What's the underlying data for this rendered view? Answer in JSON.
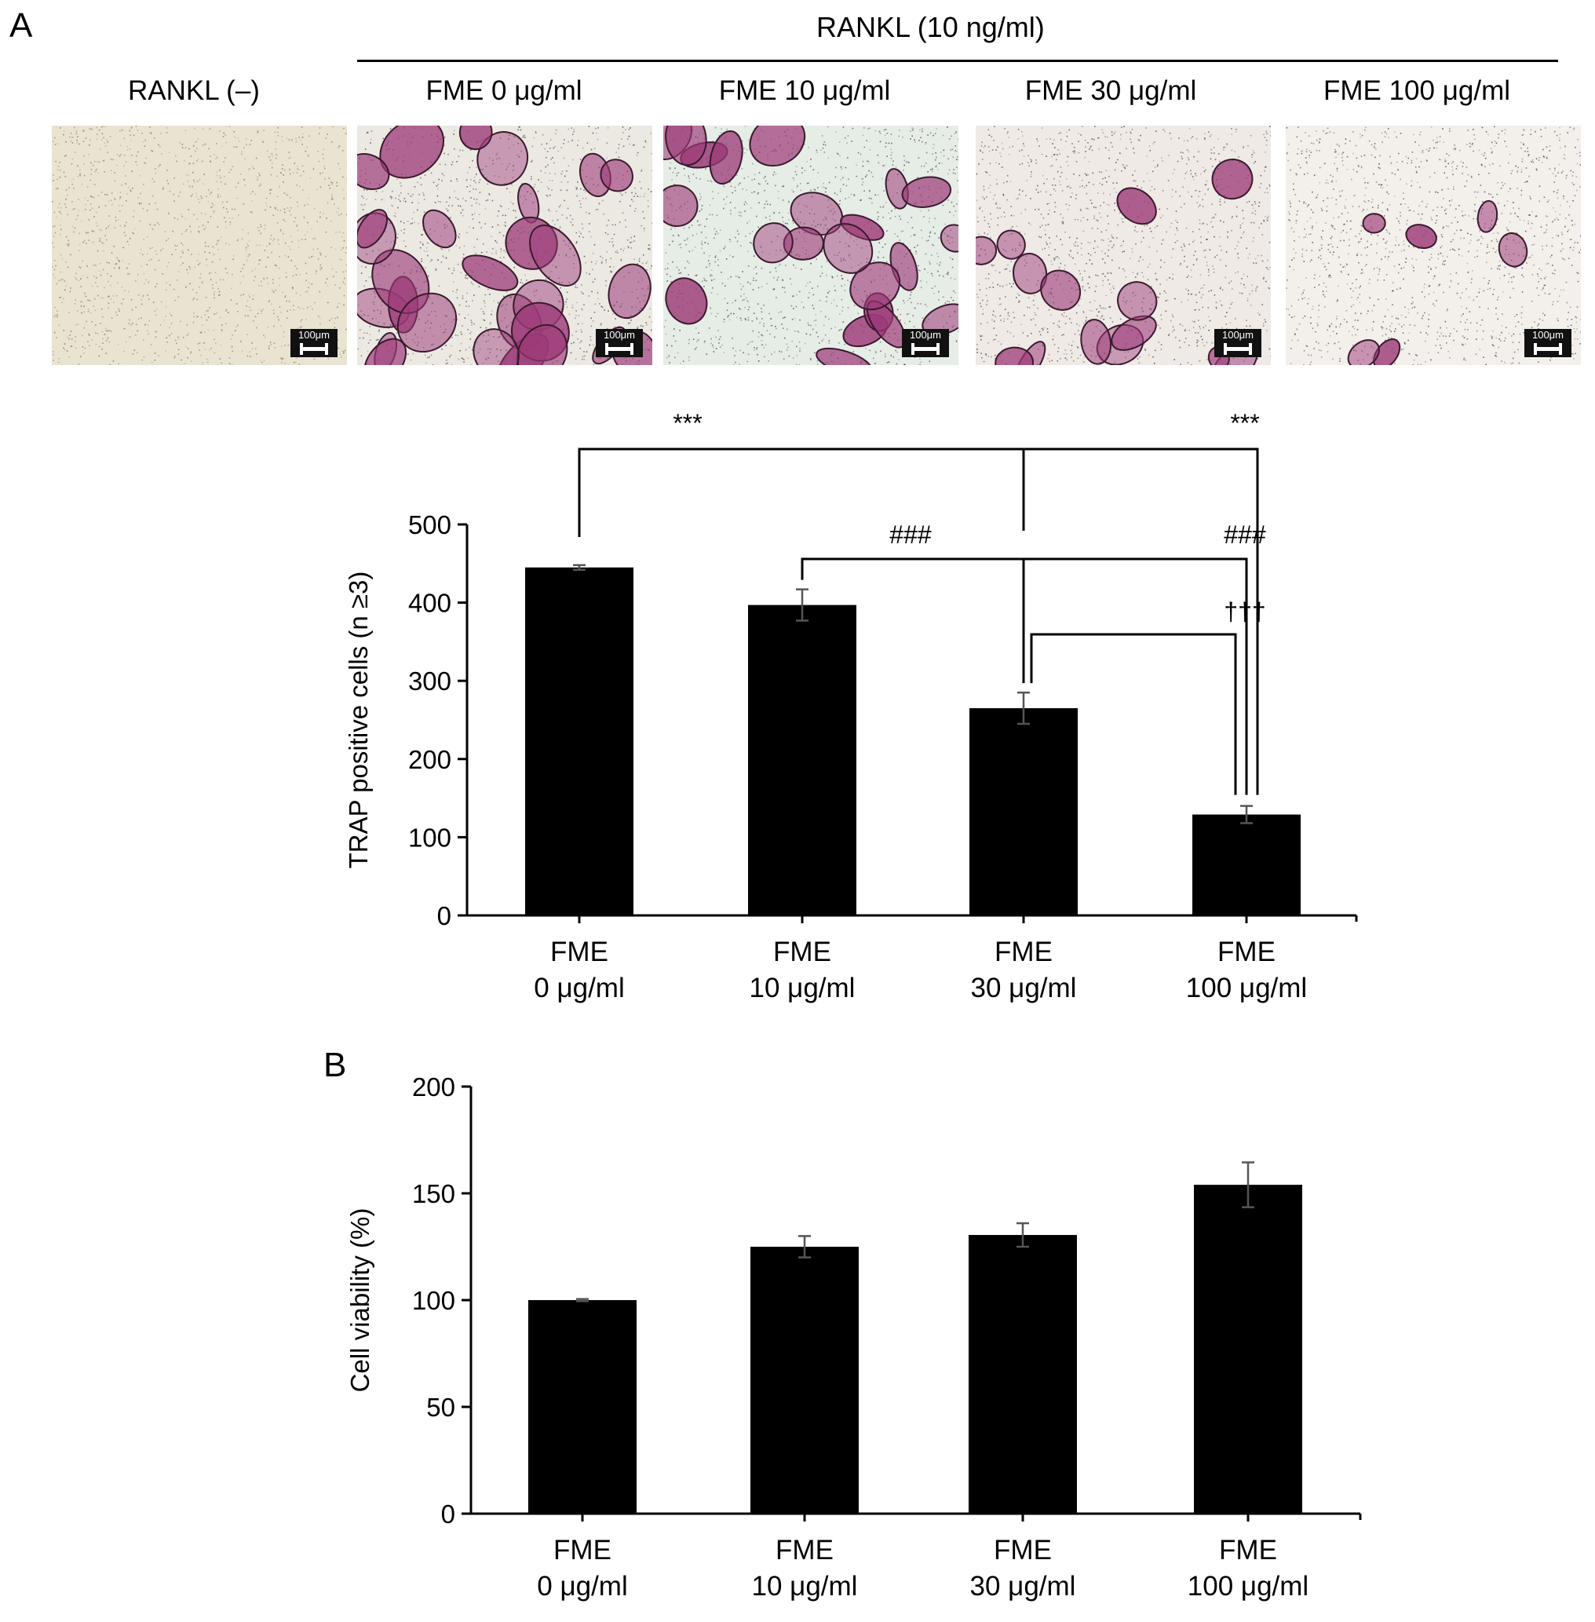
{
  "panel_a": {
    "letter": "A",
    "group_title": "RANKL (10 ng/ml)",
    "images": [
      {
        "label": "RANKL (–)",
        "scale": "100μm",
        "stain_color": "#9c3a78",
        "cell_count": 0
      },
      {
        "label": "FME 0 μg/ml",
        "scale": "100μm",
        "stain_color": "#9c3a78",
        "cell_count": 28
      },
      {
        "label": "FME 10 μg/ml",
        "scale": "100μm",
        "stain_color": "#9c3a78",
        "cell_count": 22
      },
      {
        "label": "FME 30 μg/ml",
        "scale": "100μm",
        "stain_color": "#9c3a78",
        "cell_count": 14
      },
      {
        "label": "FME 100 μg/ml",
        "scale": "100μm",
        "stain_color": "#9c3a78",
        "cell_count": 6
      }
    ]
  },
  "panel_b": {
    "letter": "B"
  },
  "chart_data": [
    {
      "type": "bar",
      "panel": "A",
      "categories": [
        [
          "FME",
          "0 μg/ml"
        ],
        [
          "FME",
          "10 μg/ml"
        ],
        [
          "FME",
          "30 μg/ml"
        ],
        [
          "FME",
          "100 μg/ml"
        ]
      ],
      "values": [
        445,
        397,
        265,
        129
      ],
      "errors": [
        3,
        20,
        20,
        11
      ],
      "ylabel": "TRAP positive cells (n ≥3)",
      "xlabel": "",
      "ylim": [
        0,
        500
      ],
      "yticks": [
        0,
        100,
        200,
        300,
        400,
        500
      ],
      "bar_color": "#000000",
      "significance": [
        {
          "from": 0,
          "to": 3,
          "label": "***"
        },
        {
          "from": 2,
          "to": 3,
          "label": "***"
        },
        {
          "from": 1,
          "to": 3,
          "label": "###"
        },
        {
          "from": 2,
          "to": 3,
          "label": "###"
        },
        {
          "from": 2,
          "to": 3,
          "label": "†††"
        }
      ]
    },
    {
      "type": "bar",
      "panel": "B",
      "categories": [
        [
          "FME",
          "0 μg/ml"
        ],
        [
          "FME",
          "10 μg/ml"
        ],
        [
          "FME",
          "30 μg/ml"
        ],
        [
          "FME",
          "100 μg/ml"
        ]
      ],
      "values": [
        100,
        125,
        130.5,
        154
      ],
      "errors": [
        0.5,
        5,
        5.5,
        10.5
      ],
      "ylabel": "Cell viability (%)",
      "xlabel": "",
      "ylim": [
        0,
        200
      ],
      "yticks": [
        0,
        50,
        100,
        150,
        200
      ],
      "bar_color": "#000000"
    }
  ]
}
